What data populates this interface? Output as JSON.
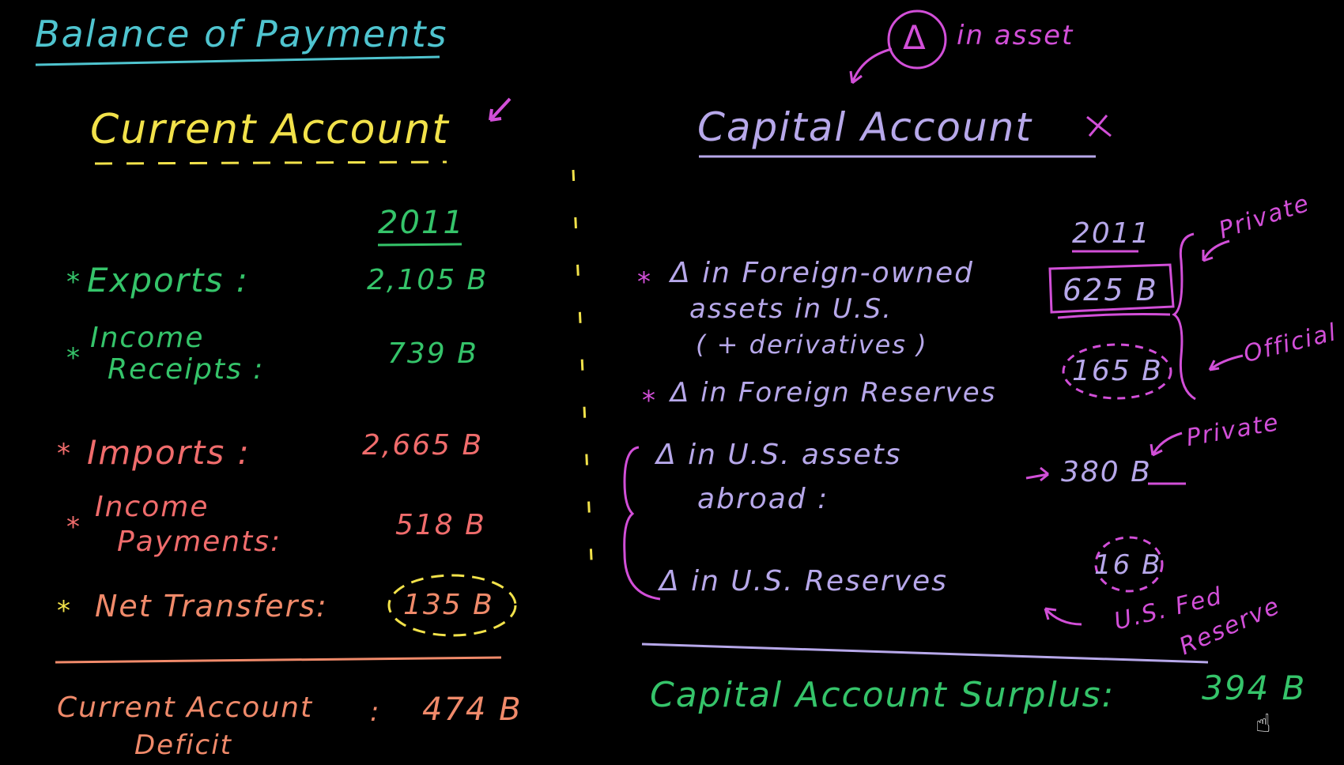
{
  "colors": {
    "background": "#000000",
    "title": "#4fc4cf",
    "current_heading": "#f2e24a",
    "green": "#35c46a",
    "pink": "#f06c6c",
    "lavender": "#b7a8ea",
    "magenta": "#d24fd8"
  },
  "title": "Balance of Payments",
  "delta_note": {
    "symbol": "Δ",
    "text": "in asset"
  },
  "current_account": {
    "heading": "Current Account",
    "year": "2011",
    "items": [
      {
        "star": "*",
        "label": "Exports :",
        "value": "2,105 B"
      },
      {
        "star": "*",
        "label_line1": "Income",
        "label_line2": "Receipts :",
        "value": "739 B"
      },
      {
        "star": "*",
        "label": "Imports :",
        "value": "2,665 B"
      },
      {
        "star": "*",
        "label_line1": "Income",
        "label_line2": "Payments:",
        "value": "518 B"
      },
      {
        "star": "*",
        "label": "Net Transfers:",
        "value": "135 B"
      }
    ],
    "result_label_line1": "Current Account",
    "result_label_line2": "Deficit",
    "result_sep": ":",
    "result_value": "474 B"
  },
  "capital_account": {
    "heading": "Capital Account",
    "year": "2011",
    "items": [
      {
        "star": "*",
        "label_line1": "Δ in Foreign-owned",
        "label_line2": "assets in U.S.",
        "label_line3": "( + derivatives )",
        "value": "625 B"
      },
      {
        "star": "*",
        "label": "Δ in Foreign Reserves",
        "value": "165 B"
      },
      {
        "label_line1": "Δ in U.S. assets",
        "label_line2": "abroad :",
        "value": "380 B"
      },
      {
        "label": "Δ in U.S. Reserves",
        "value": "16 B"
      }
    ],
    "annotations": {
      "private_top": "Private",
      "official": "Official",
      "private_bottom": "Private",
      "fed_line1": "U.S. Fed",
      "fed_line2": "Reserve"
    },
    "result_label": "Capital Account Surplus:",
    "result_value": "394 B"
  }
}
